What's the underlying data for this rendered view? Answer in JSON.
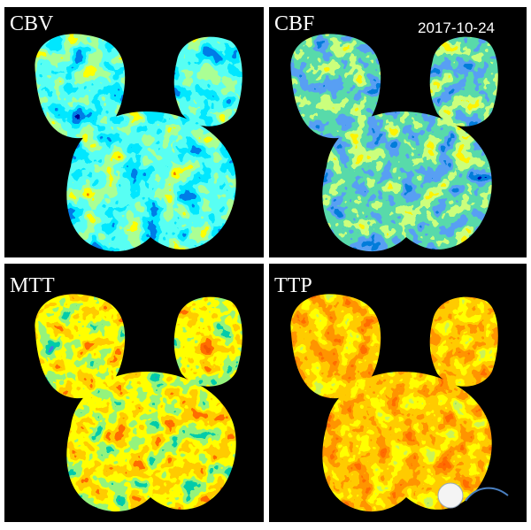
{
  "panels": [
    {
      "label": "CBV"
    },
    {
      "label": "CBF",
      "date": "2017-10-24"
    },
    {
      "label": "MTT"
    },
    {
      "label": "TTP"
    }
  ]
}
